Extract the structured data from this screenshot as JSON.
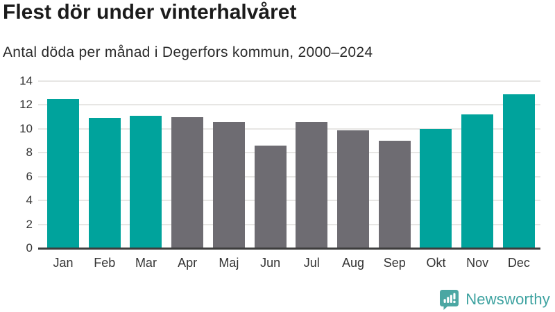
{
  "header": {
    "title": "Flest dör under vinterhalvåret",
    "subtitle": "Antal döda per månad i Degerfors kommun, 2000–2024"
  },
  "chart_data": {
    "type": "bar",
    "title": "Flest dör under vinterhalvåret",
    "subtitle": "Antal döda per månad i Degerfors kommun, 2000–2024",
    "categories": [
      "Jan",
      "Feb",
      "Mar",
      "Apr",
      "Maj",
      "Jun",
      "Jul",
      "Aug",
      "Sep",
      "Okt",
      "Nov",
      "Dec"
    ],
    "values": [
      12.5,
      10.9,
      11.1,
      11.0,
      10.6,
      8.6,
      10.6,
      9.9,
      9.0,
      10.0,
      11.2,
      12.9
    ],
    "bar_groups": [
      "winter",
      "winter",
      "winter",
      "summer",
      "summer",
      "summer",
      "summer",
      "summer",
      "summer",
      "winter",
      "winter",
      "winter"
    ],
    "bar_palette": {
      "winter": "#00a39c",
      "summer": "#6e6c72"
    },
    "xlabel": "",
    "ylabel": "",
    "ylim": [
      0,
      14
    ],
    "yticks": [
      0,
      2,
      4,
      6,
      8,
      10,
      12,
      14
    ],
    "grid": "horizontal",
    "legend": "none"
  },
  "footer": {
    "logo_text": "Newsworthy",
    "logo_icon": "newsworthy-speech-bubble-chart-icon"
  },
  "colors": {
    "bar_winter": "#00a39c",
    "bar_summer": "#6e6c72",
    "gridline": "#e7e6e4",
    "axis_line": "#3d3d3d",
    "title_text": "#1b1b1b",
    "subtitle_text": "#2b2b2b",
    "tick_label_text": "#333333",
    "logo_teal": "#3da2a0",
    "logo_icon_fill": "#4ba7a3"
  }
}
